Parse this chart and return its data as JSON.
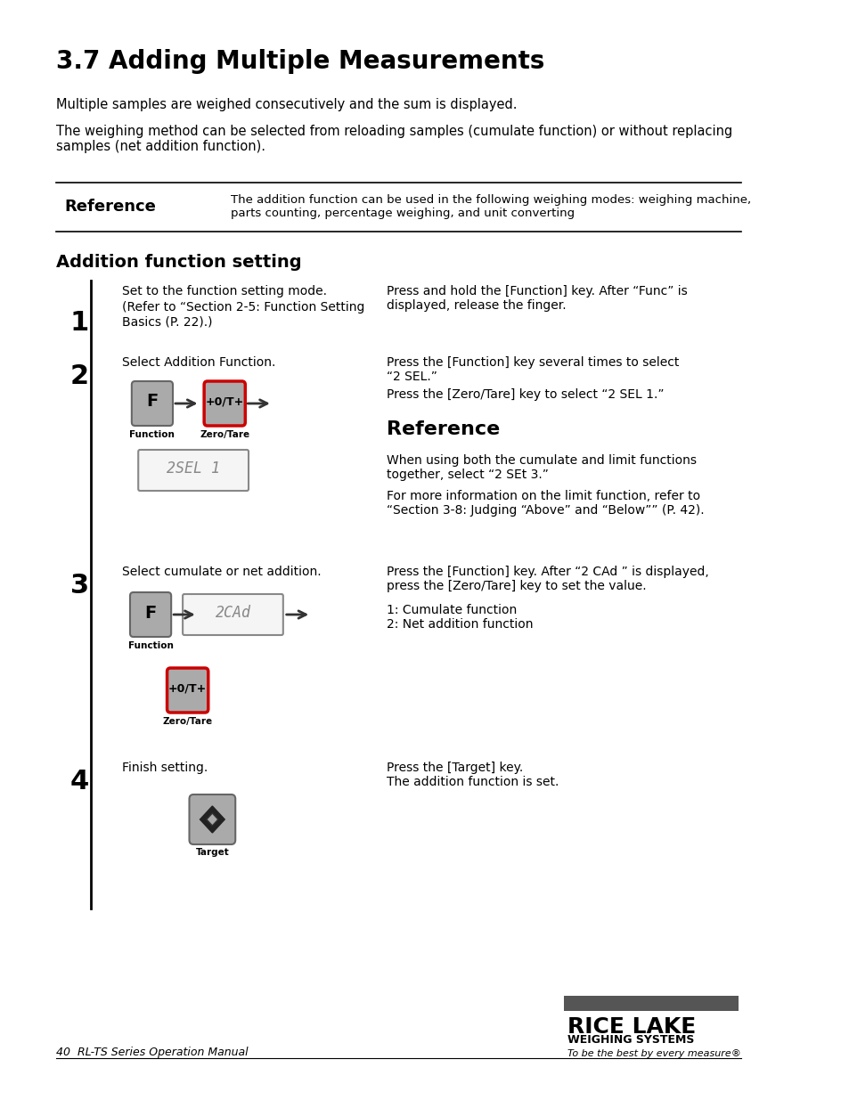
{
  "bg_color": "#ffffff",
  "page_width": 9.54,
  "page_height": 12.35,
  "title": "3.7 Adding Multiple Measurements",
  "para1": "Multiple samples are weighed consecutively and the sum is displayed.",
  "para2": "The weighing method can be selected from reloading samples (cumulate function) or without replacing\nsamples (net addition function).",
  "ref_box_label": "Reference",
  "ref_box_text": "The addition function can be used in the following weighing modes: weighing machine,\nparts counting, percentage weighing, and unit converting",
  "section2_title": "Addition function setting",
  "step1_left_line1": "Set to the function setting mode.",
  "step1_left_line2": "(Refer to “Section 2-5: Function Setting\nBasics (P. 22).)",
  "step1_right": "Press and hold the [Function] key. After “Func” is\ndisplayed, release the finger.",
  "step2_left": "Select Addition Function.",
  "step2_right_line1": "Press the [Function] key several times to select\n“2 SEL.”",
  "step2_right_line2": "Press the [Zero/Tare] key to select “2 SEL 1.”",
  "ref2_title": "Reference",
  "ref2_text1": "When using both the cumulate and limit functions\ntogether, select “2 SEt 3.”",
  "ref2_text2": "For more information on the limit function, refer to\n“Section 3-8: Judging “Above” and “Below”” (P. 42).",
  "step3_left": "Select cumulate or net addition.",
  "step3_right_line1": "Press the [Function] key. After “2 CAd ” is displayed,\npress the [Zero/Tare] key to set the value.",
  "step3_right_line2": "1: Cumulate function\n2: Net addition function",
  "step4_left": "Finish setting.",
  "step4_right": "Press the [Target] key.\nThe addition function is set.",
  "footer_left": "40  RL-TS Series Operation Manual",
  "footer_right1": "RICE LAKE",
  "footer_right2": "WEIGHING SYSTEMS",
  "footer_right3": "To be the best by every measure®",
  "gray_btn_color": "#aaaaaa",
  "red_btn_color": "#cc0000",
  "display_bg": "#f5f5f5",
  "display_border": "#888888",
  "arrow_color": "#333333"
}
